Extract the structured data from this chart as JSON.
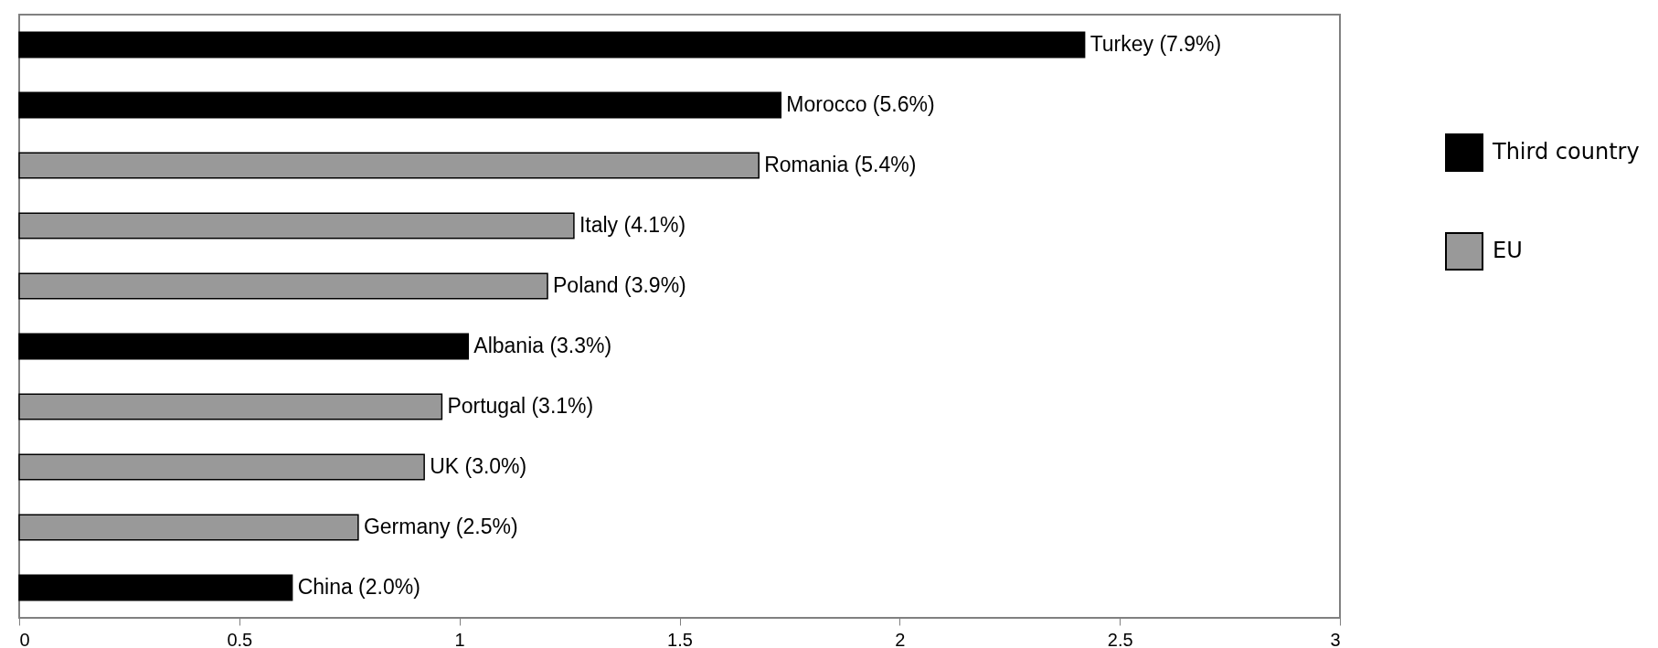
{
  "chart_data": {
    "type": "bar",
    "orientation": "horizontal",
    "categories": [
      "Turkey (7.9%)",
      "Morocco (5.6%)",
      "Romania (5.4%)",
      "Italy (4.1%)",
      "Poland (3.9%)",
      "Albania (3.3%)",
      "Portugal (3.1%)",
      "UK (3.0%)",
      "Germany (2.5%)",
      "China (2.0%)"
    ],
    "series": [
      {
        "name": "Third country",
        "color": "#000000",
        "values": [
          2.42,
          1.73,
          null,
          null,
          null,
          1.02,
          null,
          null,
          null,
          0.62
        ]
      },
      {
        "name": "EU",
        "color": "#999999",
        "values": [
          null,
          null,
          1.68,
          1.26,
          1.2,
          null,
          0.96,
          0.92,
          0.77,
          null
        ]
      }
    ],
    "xlim": [
      0,
      3
    ],
    "xticks": [
      0,
      0.5,
      1,
      1.5,
      2,
      2.5,
      3
    ],
    "grid": false,
    "legend": "right"
  }
}
